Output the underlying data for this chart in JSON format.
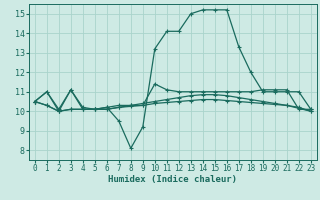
{
  "xlabel": "Humidex (Indice chaleur)",
  "xlim": [
    -0.5,
    23.5
  ],
  "ylim": [
    7.5,
    15.5
  ],
  "yticks": [
    8,
    9,
    10,
    11,
    12,
    13,
    14,
    15
  ],
  "xticks": [
    0,
    1,
    2,
    3,
    4,
    5,
    6,
    7,
    8,
    9,
    10,
    11,
    12,
    13,
    14,
    15,
    16,
    17,
    18,
    19,
    20,
    21,
    22,
    23
  ],
  "bg_color": "#ceeae4",
  "grid_color": "#aad4cc",
  "line_color": "#1a6b5e",
  "lines": [
    [
      10.5,
      11.0,
      10.0,
      11.1,
      10.1,
      10.1,
      10.2,
      9.5,
      8.1,
      9.2,
      13.2,
      14.1,
      14.1,
      15.0,
      15.2,
      15.2,
      15.2,
      13.3,
      12.0,
      11.0,
      11.0,
      11.0,
      11.0,
      10.1
    ],
    [
      10.5,
      11.0,
      10.1,
      11.1,
      10.2,
      10.1,
      10.2,
      10.3,
      10.3,
      10.3,
      11.4,
      11.1,
      11.0,
      11.0,
      11.0,
      11.0,
      11.0,
      11.0,
      11.0,
      11.1,
      11.1,
      11.1,
      10.1,
      10.1
    ],
    [
      10.5,
      10.3,
      10.0,
      10.1,
      10.1,
      10.1,
      10.1,
      10.2,
      10.3,
      10.4,
      10.5,
      10.6,
      10.7,
      10.8,
      10.85,
      10.85,
      10.8,
      10.7,
      10.6,
      10.5,
      10.4,
      10.3,
      10.2,
      10.0
    ],
    [
      10.5,
      10.3,
      10.0,
      10.1,
      10.1,
      10.1,
      10.1,
      10.2,
      10.25,
      10.3,
      10.4,
      10.45,
      10.5,
      10.55,
      10.6,
      10.6,
      10.55,
      10.5,
      10.45,
      10.4,
      10.35,
      10.3,
      10.15,
      10.0
    ]
  ]
}
